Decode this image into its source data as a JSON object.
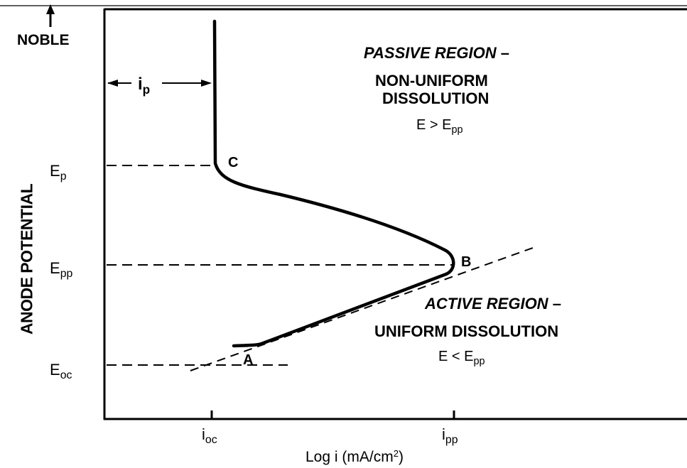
{
  "fig": {
    "noble": "NOBLE",
    "y_axis_label": "ANODE POTENTIAL",
    "x_axis_label": "Log i (mA/cm",
    "x_axis_label_sup": "2",
    "x_axis_label_end": ")",
    "ticks_y": [
      {
        "main": "E",
        "sub": "p"
      },
      {
        "main": "E",
        "sub": "pp"
      },
      {
        "main": "E",
        "sub": "oc"
      }
    ],
    "ticks_x": [
      {
        "main": "i",
        "sub": "oc"
      },
      {
        "main": "i",
        "sub": "pp"
      }
    ],
    "ip": {
      "main": "i",
      "sub": "p"
    },
    "points": {
      "a": "A",
      "b": "B",
      "c": "C"
    },
    "passive_title": "PASSIVE REGION",
    "passive_dash": " –",
    "passive_line2": "NON-UNIFORM",
    "passive_line3": "DISSOLUTION",
    "passive_cond": {
      "main": "E > E",
      "sub": "pp"
    },
    "active_title": "ACTIVE REGION",
    "active_dash": " –",
    "active_line2": "UNIFORM DISSOLUTION",
    "active_cond": {
      "main": "E < E",
      "sub": "pp"
    }
  }
}
